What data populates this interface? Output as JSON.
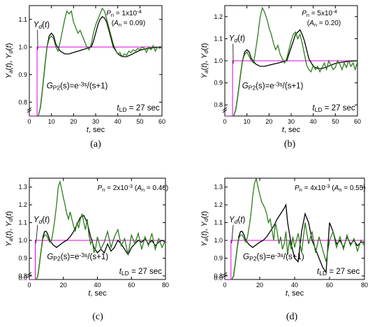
{
  "panels": [
    {
      "label": "(a)",
      "ylabel": "Ya(t), Yd(t)",
      "xlabel": "t, sec",
      "xlim": [
        0,
        60
      ],
      "xticks": [
        0,
        10,
        20,
        30,
        40,
        50,
        60
      ],
      "ylim": [
        0.75,
        1.15
      ],
      "yticks": [
        0.8,
        0.9,
        1.0,
        1.1
      ],
      "yd_label": "Yd(t)",
      "power_label": "Pn = 1x10^-4",
      "amp_label": "(An = 0.09)",
      "tf_label": "GP2(s)=e^-3s/(s+1)",
      "tld_label": "tLD = 27 sec"
    },
    {
      "label": "(b)",
      "ylabel": "Ya(t), Yd(t)",
      "xlabel": "t, sec",
      "xlim": [
        0,
        60
      ],
      "xticks": [
        0,
        10,
        20,
        30,
        40,
        50,
        60
      ],
      "ylim": [
        0.75,
        1.25
      ],
      "yticks": [
        0.8,
        0.9,
        1.0,
        1.1,
        1.2
      ],
      "yd_label": "Yd(t)",
      "power_label": "Pn = 5x10^-4",
      "amp_label": "(An = 0.20)",
      "tf_label": "GP2(s)=e^-3s/(s+1)",
      "tld_label": "tLD = 27 sec"
    },
    {
      "label": "(c)",
      "ylabel": "Ya(t), Yd(t)",
      "xlabel": "t, sec",
      "xlim": [
        0,
        80
      ],
      "xticks": [
        0,
        20,
        40,
        60,
        80
      ],
      "ylim": [
        0.78,
        1.35
      ],
      "yticks": [
        0.8,
        0.9,
        1.0,
        1.1,
        1.2,
        1.3
      ],
      "ybreak_ticks": [
        0.0
      ],
      "yd_label": "Yd(t)",
      "power_label": "Pn = 2x10^-3 (An = 0.40)",
      "tf_label": "GP2(s)=e^-3s/(s+1)",
      "tld_label": "tLD = 27 sec"
    },
    {
      "label": "(d)",
      "ylabel": "Ya(t), Yd(t)",
      "xlabel": "t, sec",
      "xlim": [
        0,
        80
      ],
      "xticks": [
        0,
        20,
        40,
        60,
        80
      ],
      "ylim": [
        0.78,
        1.35
      ],
      "yticks": [
        0.8,
        0.9,
        1.0,
        1.1,
        1.2,
        1.3
      ],
      "ybreak_ticks": [
        0.0
      ],
      "yd_label": "Yd(t)",
      "power_label": "Pn = 4x10^-3 (An = 0.55)",
      "tf_label": "GP2(s)=e^-3s/(s+1)",
      "tld_label": "tLD = 27 sec"
    }
  ],
  "chart_data": [
    {
      "type": "line",
      "panel": "(a)",
      "series": [
        {
          "role": "desired",
          "color": "#e000e0",
          "x": [
            0,
            3.5,
            3.5,
            60
          ],
          "y": [
            0.75,
            0.75,
            1.0,
            1.0
          ]
        },
        {
          "role": "actual",
          "color": "#000000",
          "x": [
            4,
            5,
            6,
            7,
            8,
            9,
            10,
            11,
            12,
            14,
            16,
            18,
            20,
            22,
            24,
            26,
            28,
            29,
            30,
            31,
            32,
            33,
            34,
            35,
            36,
            37,
            38,
            40,
            42,
            44,
            46,
            48,
            50,
            52,
            54,
            56,
            58,
            60
          ],
          "y": [
            0.75,
            0.78,
            0.85,
            0.93,
            1.0,
            1.04,
            1.05,
            1.04,
            1.01,
            0.985,
            0.975,
            0.975,
            0.98,
            0.985,
            0.99,
            0.995,
            1.0,
            1.02,
            1.05,
            1.08,
            1.1,
            1.11,
            1.105,
            1.09,
            1.06,
            1.03,
            1.0,
            0.975,
            0.965,
            0.965,
            0.972,
            0.98,
            0.988,
            0.992,
            0.995,
            0.997,
            0.999,
            1.0
          ]
        },
        {
          "role": "actual-noisy",
          "color": "#2e7d1e",
          "x": [
            4,
            5,
            6,
            7,
            8,
            9,
            10,
            11,
            12,
            13,
            14,
            15,
            16,
            17,
            18,
            19,
            20,
            21,
            22,
            23,
            24,
            25,
            26,
            27,
            28,
            29,
            30,
            31,
            32,
            33,
            34,
            35,
            36,
            37,
            38,
            39,
            40,
            41,
            42,
            43,
            44,
            45,
            46,
            47,
            48,
            49,
            50,
            51,
            52,
            53,
            54,
            55,
            56,
            57,
            58,
            59,
            60
          ],
          "y": [
            0.75,
            0.78,
            0.85,
            0.93,
            1.0,
            1.03,
            1.04,
            1.03,
            1.0,
            0.985,
            1.02,
            1.06,
            1.1,
            1.13,
            1.12,
            1.13,
            1.09,
            1.07,
            1.05,
            1.06,
            1.04,
            1.02,
            1.0,
            0.99,
            1.01,
            1.05,
            1.08,
            1.1,
            1.12,
            1.14,
            1.13,
            1.1,
            1.07,
            1.04,
            1.01,
            0.99,
            0.975,
            0.98,
            0.965,
            0.975,
            0.97,
            0.985,
            0.98,
            0.99,
            0.985,
            0.995,
            0.99,
            1.0,
            0.995,
            0.98,
            1.0,
            0.99,
            1.005,
            0.985,
            1.0,
            0.995,
            1.0
          ]
        }
      ]
    },
    {
      "type": "line",
      "panel": "(b)",
      "series": [
        {
          "role": "desired",
          "color": "#e000e0",
          "x": [
            0,
            3.5,
            3.5,
            60
          ],
          "y": [
            0.75,
            0.75,
            1.0,
            1.0
          ]
        },
        {
          "role": "actual",
          "color": "#000000",
          "x": [
            4,
            5,
            6,
            7,
            8,
            9,
            10,
            11,
            12,
            14,
            16,
            18,
            20,
            22,
            24,
            26,
            28,
            29,
            30,
            31,
            32,
            33,
            34,
            35,
            36,
            37,
            38,
            40,
            42,
            44,
            46,
            48,
            50,
            52,
            54,
            56,
            58,
            60
          ],
          "y": [
            0.75,
            0.78,
            0.85,
            0.93,
            1.0,
            1.04,
            1.05,
            1.04,
            1.01,
            0.985,
            0.975,
            0.975,
            0.98,
            0.985,
            0.99,
            0.995,
            1.0,
            1.03,
            1.06,
            1.09,
            1.12,
            1.13,
            1.14,
            1.12,
            1.09,
            1.05,
            1.01,
            0.975,
            0.965,
            0.965,
            0.972,
            0.98,
            0.988,
            0.992,
            0.995,
            0.997,
            0.999,
            1.0
          ]
        },
        {
          "role": "actual-noisy",
          "color": "#2e7d1e",
          "x": [
            4,
            5,
            6,
            7,
            8,
            9,
            10,
            11,
            12,
            13,
            14,
            15,
            16,
            17,
            18,
            19,
            20,
            21,
            22,
            23,
            24,
            25,
            26,
            27,
            28,
            29,
            30,
            31,
            32,
            33,
            34,
            35,
            36,
            37,
            38,
            39,
            40,
            41,
            42,
            43,
            44,
            45,
            46,
            47,
            48,
            49,
            50,
            51,
            52,
            53,
            54,
            55,
            56,
            57,
            58,
            59,
            60
          ],
          "y": [
            0.75,
            0.78,
            0.85,
            0.93,
            1.0,
            1.03,
            1.04,
            1.02,
            1.0,
            0.99,
            1.05,
            1.12,
            1.2,
            1.24,
            1.22,
            1.19,
            1.15,
            1.12,
            1.08,
            1.05,
            1.07,
            1.03,
            1.01,
            0.99,
            1.01,
            1.05,
            1.09,
            1.12,
            1.13,
            1.1,
            1.12,
            1.08,
            1.03,
            0.98,
            0.96,
            0.95,
            0.98,
            0.96,
            0.975,
            0.95,
            0.97,
            0.99,
            0.96,
            1.0,
            0.98,
            0.96,
            0.97,
            1.0,
            0.985,
            0.96,
            0.99,
            0.97,
            1.0,
            0.975,
            0.99,
            0.96,
            0.995
          ]
        }
      ]
    },
    {
      "type": "line",
      "panel": "(c)",
      "series": [
        {
          "role": "desired",
          "color": "#e000e0",
          "x": [
            0,
            3.5,
            3.5,
            80
          ],
          "y": [
            0.78,
            0.78,
            1.0,
            1.0
          ]
        },
        {
          "role": "actual",
          "color": "#000000",
          "x": [
            4,
            5,
            6,
            7,
            8,
            9,
            10,
            11,
            12,
            14,
            16,
            18,
            20,
            22,
            24,
            26,
            28,
            30,
            32,
            34,
            36,
            38,
            40,
            42,
            44,
            46,
            48,
            50,
            52,
            54,
            56,
            58,
            60,
            62,
            64,
            66,
            68,
            70,
            72,
            74,
            76,
            78,
            80
          ],
          "y": [
            0.78,
            0.8,
            0.87,
            0.95,
            1.02,
            1.05,
            1.05,
            1.03,
            1.0,
            0.975,
            0.96,
            0.975,
            0.99,
            1.0,
            1.02,
            1.05,
            1.09,
            1.13,
            1.14,
            1.1,
            1.02,
            0.96,
            0.93,
            0.95,
            0.93,
            0.98,
            0.94,
            0.96,
            1.0,
            0.98,
            0.95,
            0.92,
            0.96,
            0.98,
            1.0,
            0.99,
            1.01,
            0.98,
            1.0,
            0.97,
            0.99,
            1.0,
            0.99
          ]
        },
        {
          "role": "actual-noisy",
          "color": "#2e7d1e",
          "x": [
            4,
            5,
            6,
            7,
            8,
            9,
            10,
            11,
            12,
            13,
            14,
            15,
            16,
            17,
            18,
            19,
            20,
            21,
            22,
            23,
            24,
            25,
            26,
            27,
            28,
            29,
            30,
            31,
            32,
            33,
            34,
            35,
            36,
            37,
            38,
            39,
            40,
            42,
            44,
            46,
            48,
            50,
            52,
            54,
            56,
            58,
            60,
            62,
            64,
            66,
            68,
            70,
            72,
            74,
            76,
            78,
            80
          ],
          "y": [
            0.78,
            0.8,
            0.87,
            0.95,
            1.01,
            1.03,
            1.03,
            1.01,
            0.99,
            1.0,
            1.05,
            1.12,
            1.2,
            1.3,
            1.33,
            1.29,
            1.24,
            1.2,
            1.15,
            1.12,
            1.16,
            1.12,
            1.08,
            1.05,
            1.1,
            1.07,
            1.12,
            1.15,
            1.1,
            1.06,
            1.12,
            1.03,
            0.98,
            1.0,
            0.93,
            0.96,
            1.02,
            0.95,
            0.99,
            1.05,
            0.96,
            1.02,
            1.06,
            0.97,
            1.01,
            0.92,
            1.03,
            0.98,
            1.04,
            0.95,
            1.02,
            0.97,
            1.04,
            0.95,
            1.01,
            0.96,
            1.0
          ]
        }
      ]
    },
    {
      "type": "line",
      "panel": "(d)",
      "series": [
        {
          "role": "desired",
          "color": "#e000e0",
          "x": [
            0,
            3.5,
            3.5,
            80
          ],
          "y": [
            0.78,
            0.78,
            1.0,
            1.0
          ]
        },
        {
          "role": "actual",
          "color": "#000000",
          "x": [
            4,
            5,
            6,
            7,
            8,
            9,
            10,
            11,
            12,
            14,
            16,
            18,
            20,
            22,
            24,
            26,
            28,
            30,
            32,
            34,
            35,
            36,
            38,
            40,
            42,
            44,
            46,
            48,
            50,
            52,
            54,
            56,
            58,
            60,
            62,
            64,
            66,
            68,
            70,
            72,
            74,
            76,
            78,
            80
          ],
          "y": [
            0.78,
            0.8,
            0.87,
            0.95,
            1.02,
            1.05,
            1.05,
            1.03,
            1.0,
            0.975,
            0.96,
            0.975,
            0.99,
            1.0,
            1.02,
            1.05,
            1.08,
            1.12,
            1.15,
            1.18,
            1.2,
            1.1,
            0.98,
            0.9,
            0.88,
            1.05,
            1.15,
            1.1,
            1.0,
            0.95,
            0.9,
            0.85,
            0.82,
            1.1,
            1.05,
            0.98,
            1.0,
            0.96,
            1.02,
            0.98,
            1.0,
            0.97,
            0.99,
            0.99
          ]
        },
        {
          "role": "actual-noisy",
          "color": "#2e7d1e",
          "x": [
            4,
            5,
            6,
            7,
            8,
            9,
            10,
            11,
            12,
            13,
            14,
            15,
            16,
            17,
            18,
            19,
            20,
            21,
            22,
            23,
            24,
            25,
            26,
            27,
            28,
            29,
            30,
            31,
            32,
            33,
            34,
            35,
            36,
            37,
            38,
            39,
            40,
            42,
            44,
            46,
            48,
            50,
            52,
            54,
            56,
            58,
            60,
            62,
            64,
            66,
            68,
            70,
            72,
            74,
            76,
            78,
            80
          ],
          "y": [
            0.78,
            0.8,
            0.87,
            0.95,
            1.01,
            1.03,
            1.03,
            1.01,
            0.99,
            1.02,
            1.08,
            1.15,
            1.25,
            1.32,
            1.35,
            1.3,
            1.26,
            1.22,
            1.2,
            1.18,
            1.15,
            1.1,
            1.12,
            1.06,
            1.0,
            1.1,
            1.05,
            0.98,
            1.02,
            0.95,
            0.98,
            1.05,
            0.92,
            1.0,
            0.95,
            1.02,
            0.96,
            1.04,
            0.93,
            1.1,
            0.98,
            1.05,
            0.93,
            1.02,
            0.95,
            0.88,
            1.0,
            1.05,
            0.96,
            1.02,
            0.95,
            1.03,
            0.97,
            1.01,
            0.94,
            1.0,
            0.97
          ]
        }
      ]
    }
  ]
}
